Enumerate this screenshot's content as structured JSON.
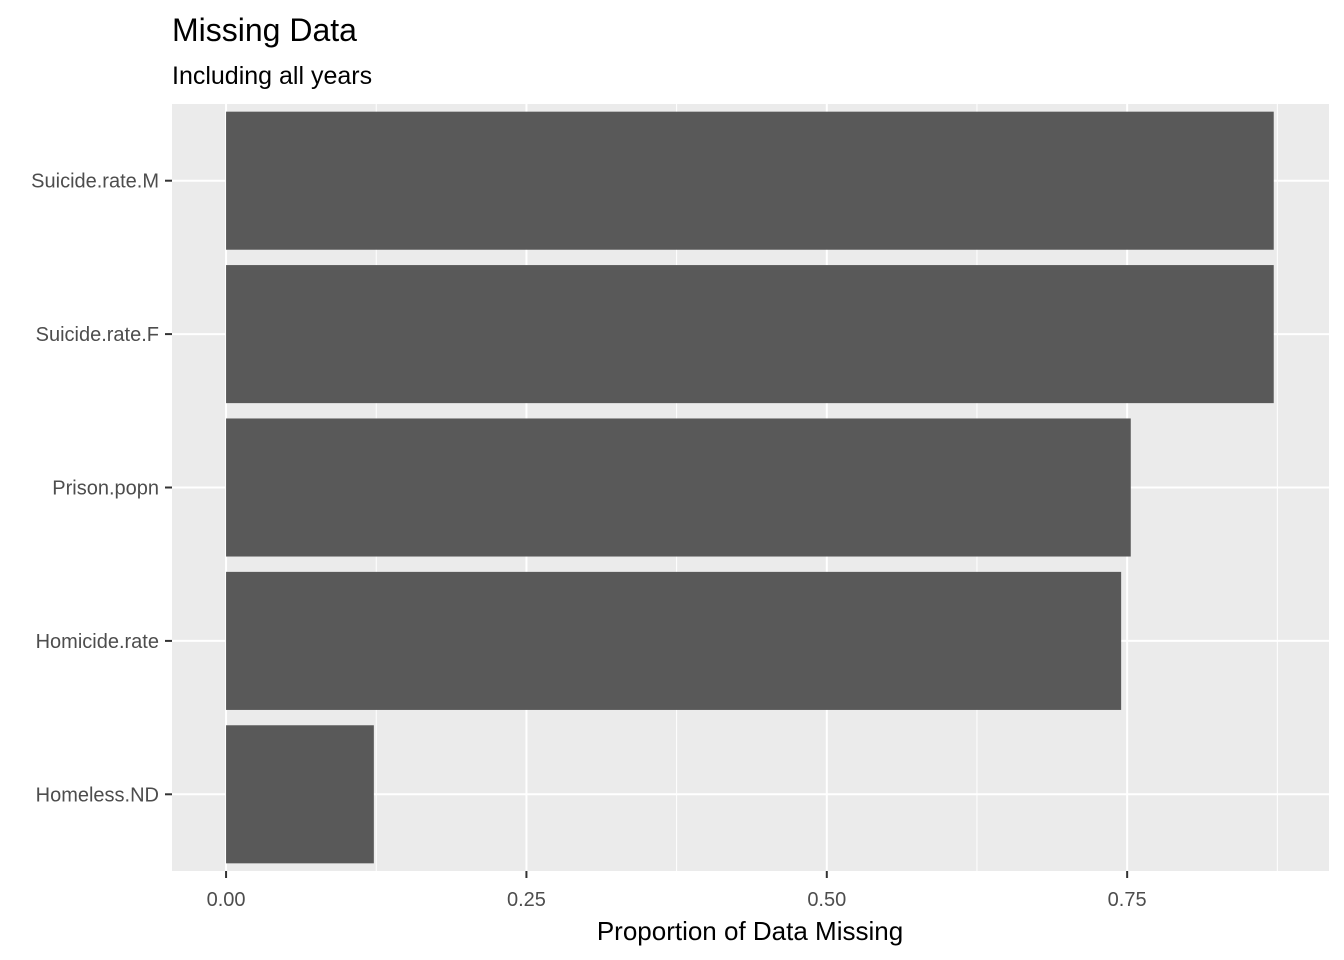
{
  "chart_data": {
    "type": "bar",
    "orientation": "horizontal",
    "title": "Missing Data",
    "subtitle": "Including all years",
    "xlabel": "Proportion of Data Missing",
    "ylabel": "",
    "categories": [
      "Suicide.rate.M",
      "Suicide.rate.F",
      "Prison.popn",
      "Homicide.rate",
      "Homeless.ND"
    ],
    "values": [
      0.872,
      0.872,
      0.753,
      0.745,
      0.123
    ],
    "xlim": [
      -0.045,
      0.918
    ],
    "xticks": [
      0,
      0.25,
      0.5,
      0.75
    ],
    "xtick_labels": [
      "0.00",
      "0.25",
      "0.50",
      "0.75"
    ],
    "grid": true,
    "legend": "none",
    "colors": {
      "bar": "#595959",
      "panel_background": "#ebebeb",
      "grid": "#ffffff",
      "tick_label": "#4d4d4d",
      "tick_mark": "#333333"
    }
  }
}
